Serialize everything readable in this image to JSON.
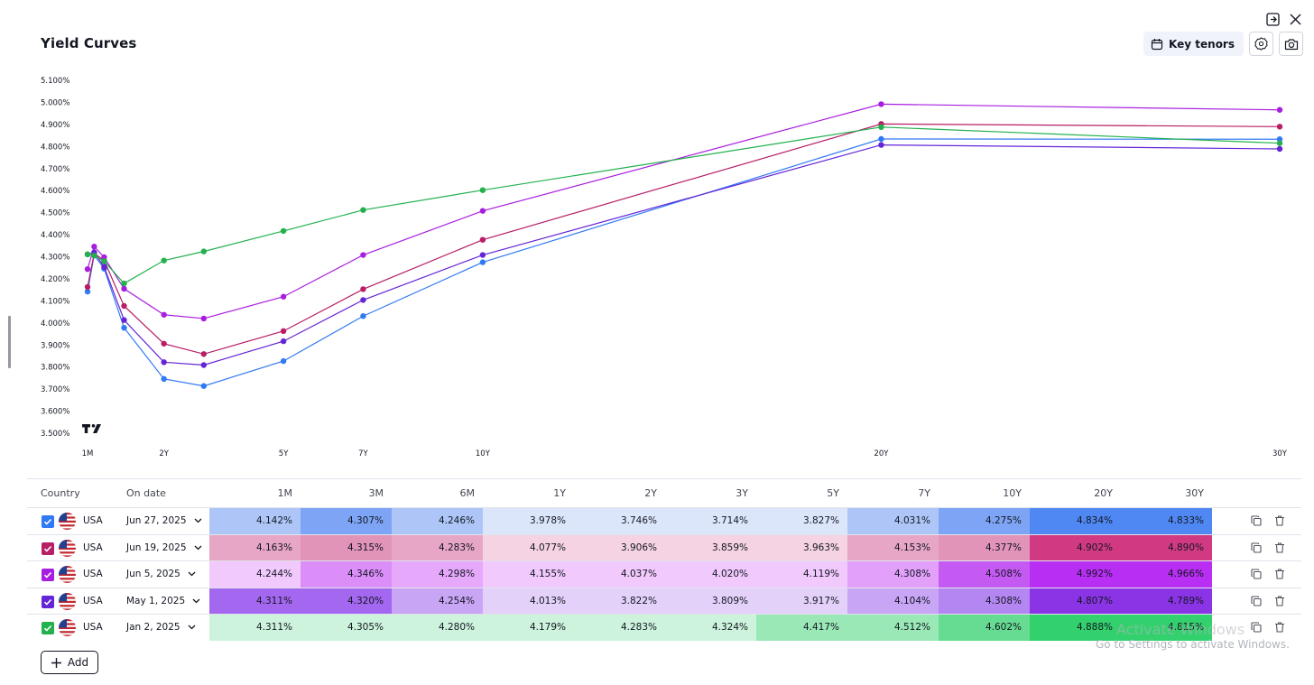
{
  "title": "Yield Curves",
  "toolbar": {
    "key_tenors_label": "Key tenors"
  },
  "window_icons": [
    "popout-icon",
    "close-icon"
  ],
  "table": {
    "headers": {
      "country": "Country",
      "date": "On date"
    },
    "tenors": [
      "1M",
      "3M",
      "6M",
      "1Y",
      "2Y",
      "3Y",
      "5Y",
      "7Y",
      "10Y",
      "20Y",
      "30Y"
    ],
    "rows": [
      {
        "country": "USA",
        "date": "Jun 27, 2025",
        "color": "#3179f5",
        "values": [
          "4.142%",
          "4.307%",
          "4.246%",
          "3.978%",
          "3.746%",
          "3.714%",
          "3.827%",
          "4.031%",
          "4.275%",
          "4.834%",
          "4.833%"
        ],
        "cell_colors": [
          "#adc6f7",
          "#7ea5f5",
          "#adc6f7",
          "#dce6fb",
          "#dce6fb",
          "#dce6fb",
          "#dce6fb",
          "#adc6f7",
          "#7ea5f5",
          "#5088f3",
          "#5088f3"
        ]
      },
      {
        "country": "USA",
        "date": "Jun 19, 2025",
        "color": "#b71e66",
        "values": [
          "4.163%",
          "4.315%",
          "4.283%",
          "4.077%",
          "3.906%",
          "3.859%",
          "3.963%",
          "4.153%",
          "4.377%",
          "4.902%",
          "4.890%"
        ],
        "cell_colors": [
          "#e7a6c5",
          "#e194b8",
          "#e7a6c5",
          "#f5d3e3",
          "#f5d3e3",
          "#f5d3e3",
          "#f5d3e3",
          "#e7a6c5",
          "#e194b8",
          "#d13a83",
          "#d13a83"
        ]
      },
      {
        "country": "USA",
        "date": "Jun 5, 2025",
        "color": "#a81ee0",
        "values": [
          "4.244%",
          "4.346%",
          "4.298%",
          "4.155%",
          "4.037%",
          "4.020%",
          "4.119%",
          "4.308%",
          "4.508%",
          "4.992%",
          "4.966%"
        ],
        "cell_colors": [
          "#f1c9fc",
          "#dc8ef8",
          "#e5a8fa",
          "#f1c9fc",
          "#f1c9fc",
          "#f1c9fc",
          "#f1c9fc",
          "#e2a0fa",
          "#c55af2",
          "#b82ef3",
          "#b82ef3"
        ]
      },
      {
        "country": "USA",
        "date": "May 1, 2025",
        "color": "#6325d6",
        "values": [
          "4.311%",
          "4.320%",
          "4.254%",
          "4.013%",
          "3.822%",
          "3.809%",
          "3.917%",
          "4.104%",
          "4.308%",
          "4.807%",
          "4.789%"
        ],
        "cell_colors": [
          "#a467ef",
          "#a467ef",
          "#c9a5f5",
          "#e3d1f9",
          "#e3d1f9",
          "#e3d1f9",
          "#e3d1f9",
          "#c9a5f5",
          "#b486f2",
          "#8a34e6",
          "#8a34e6"
        ]
      },
      {
        "country": "USA",
        "date": "Jan 2, 2025",
        "color": "#22b14c",
        "values": [
          "4.311%",
          "4.305%",
          "4.280%",
          "4.179%",
          "4.283%",
          "4.324%",
          "4.417%",
          "4.512%",
          "4.602%",
          "4.888%",
          "4.815%"
        ],
        "cell_colors": [
          "#cdf3dc",
          "#cdf3dc",
          "#cdf3dc",
          "#cdf3dc",
          "#cdf3dc",
          "#cdf3dc",
          "#99e8b6",
          "#99e8b6",
          "#66dc92",
          "#33d16e",
          "#33d16e"
        ]
      }
    ]
  },
  "add_label": "Add",
  "watermark": {
    "line1": "Activate Windows",
    "line2": "Go to Settings to activate Windows."
  },
  "chart_data": {
    "type": "line",
    "title": "Yield Curves",
    "xlabel": "",
    "ylabel": "",
    "x_ticks": [
      "1M",
      "2Y",
      "5Y",
      "7Y",
      "10Y",
      "20Y",
      "30Y"
    ],
    "y_ticks": [
      "5.100%",
      "5.000%",
      "4.900%",
      "4.800%",
      "4.700%",
      "4.600%",
      "4.500%",
      "4.400%",
      "4.300%",
      "4.200%",
      "4.100%",
      "4.000%",
      "3.900%",
      "3.800%",
      "3.700%",
      "3.600%",
      "3.500%"
    ],
    "ylim": [
      3.5,
      5.1
    ],
    "x_years": [
      0.083,
      0.25,
      0.5,
      1,
      2,
      3,
      5,
      7,
      10,
      20,
      30
    ],
    "series": [
      {
        "name": "Jun 27, 2025",
        "color": "#3179f5",
        "values": [
          4.142,
          4.307,
          4.246,
          3.978,
          3.746,
          3.714,
          3.827,
          4.031,
          4.275,
          4.834,
          4.833
        ]
      },
      {
        "name": "Jun 19, 2025",
        "color": "#b71e66",
        "values": [
          4.163,
          4.315,
          4.283,
          4.077,
          3.906,
          3.859,
          3.963,
          4.153,
          4.377,
          4.902,
          4.89
        ]
      },
      {
        "name": "Jun 5, 2025",
        "color": "#a81ee0",
        "values": [
          4.244,
          4.346,
          4.298,
          4.155,
          4.037,
          4.02,
          4.119,
          4.308,
          4.508,
          4.992,
          4.966
        ]
      },
      {
        "name": "May 1, 2025",
        "color": "#6325d6",
        "values": [
          4.311,
          4.32,
          4.254,
          4.013,
          3.822,
          3.809,
          3.917,
          4.104,
          4.308,
          4.807,
          4.789
        ]
      },
      {
        "name": "Jan 2, 2025",
        "color": "#22b14c",
        "values": [
          4.311,
          4.305,
          4.28,
          4.179,
          4.283,
          4.324,
          4.417,
          4.512,
          4.602,
          4.888,
          4.815
        ]
      }
    ]
  }
}
